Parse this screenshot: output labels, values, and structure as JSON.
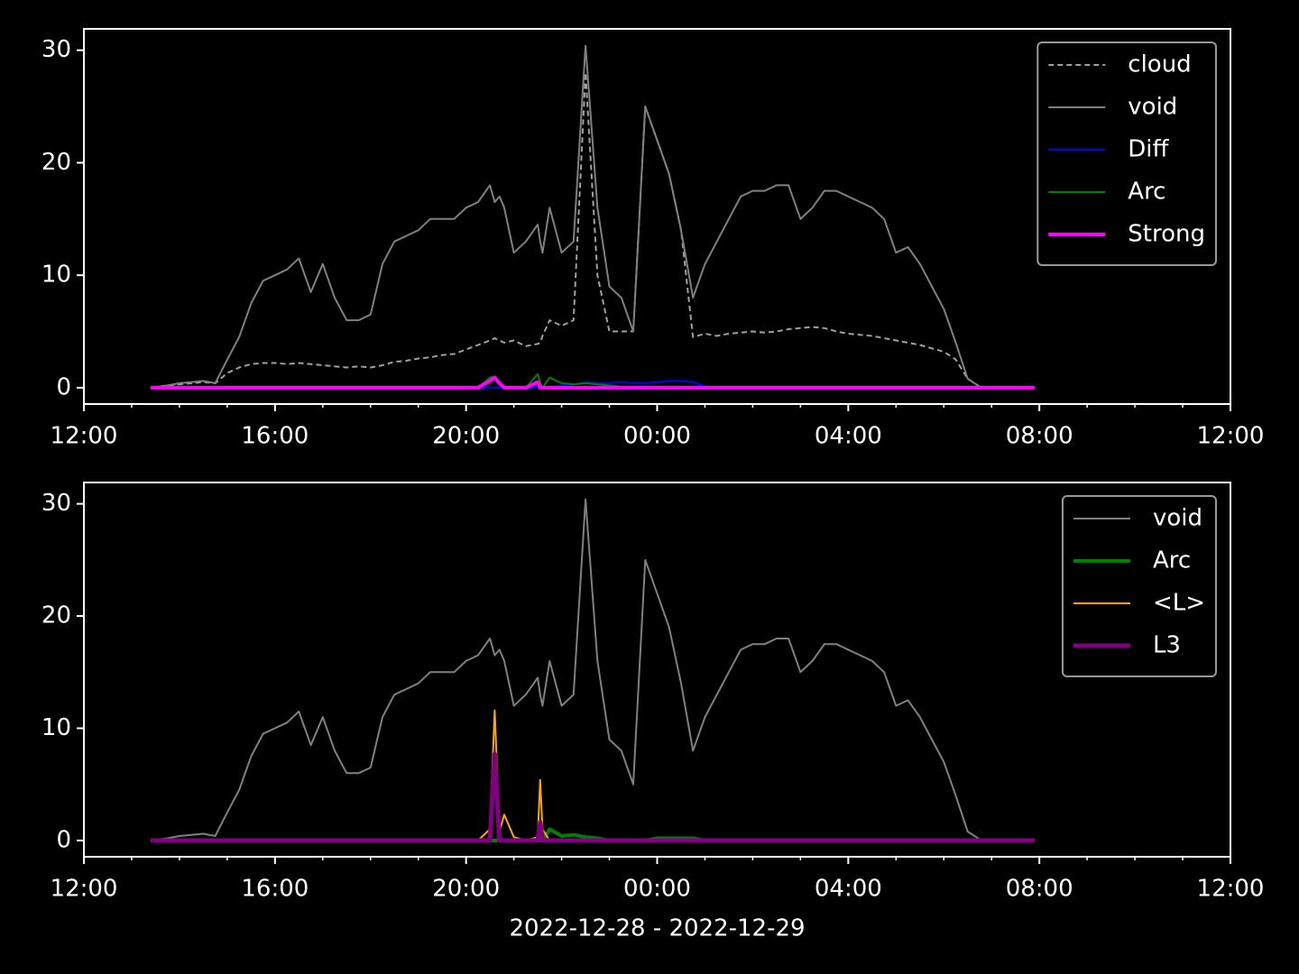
{
  "chart_data": [
    {
      "type": "line",
      "legend": "upper right",
      "xlim": [
        12,
        36
      ],
      "xticks": [
        {
          "value": 12,
          "label": "12:00"
        },
        {
          "value": 16,
          "label": "16:00"
        },
        {
          "value": 20,
          "label": "20:00"
        },
        {
          "value": 24,
          "label": "00:00"
        },
        {
          "value": 28,
          "label": "04:00"
        },
        {
          "value": 32,
          "label": "08:00"
        },
        {
          "value": 36,
          "label": "12:00"
        }
      ],
      "ylim": [
        -1.45,
        31.9
      ],
      "yticks": [
        0,
        10,
        20,
        30
      ],
      "x": [
        13.4,
        13.75,
        14,
        14.25,
        14.5,
        14.75,
        15,
        15.25,
        15.5,
        15.75,
        16,
        16.25,
        16.5,
        16.75,
        17,
        17.25,
        17.5,
        17.75,
        18,
        18.25,
        18.5,
        18.75,
        19,
        19.25,
        19.5,
        19.75,
        20,
        20.25,
        20.5,
        20.6,
        20.7,
        20.8,
        21,
        21.25,
        21.5,
        21.55,
        21.6,
        21.75,
        22,
        22.25,
        22.5,
        22.75,
        23,
        23.25,
        23.5,
        23.75,
        24,
        24.25,
        24.5,
        24.75,
        25,
        25.25,
        25.5,
        25.75,
        26,
        26.25,
        26.5,
        26.75,
        27,
        27.25,
        27.5,
        27.75,
        28,
        28.25,
        28.5,
        28.75,
        29,
        29.25,
        29.5,
        29.75,
        30,
        30.25,
        30.5,
        30.75,
        31,
        31.25,
        31.5,
        31.9
      ],
      "series": [
        {
          "name": "cloud",
          "color": "#a0a0a0",
          "linestyle": "dashed",
          "linewidth": 2,
          "values": [
            0,
            0.2,
            0.3,
            0.4,
            0.5,
            0.4,
            1.3,
            1.8,
            2.1,
            2.2,
            2.2,
            2.1,
            2.2,
            2.1,
            2,
            1.9,
            1.8,
            1.9,
            1.8,
            2,
            2.3,
            2.4,
            2.6,
            2.7,
            2.9,
            3,
            3.4,
            3.8,
            4.2,
            4.4,
            4.2,
            4,
            4.2,
            3.7,
            3.9,
            4,
            4.6,
            6,
            5.5,
            6,
            28,
            10,
            5,
            5,
            5,
            25,
            22,
            19,
            14,
            4.5,
            4.8,
            4.6,
            4.8,
            4.9,
            5,
            4.9,
            5,
            5.2,
            5.3,
            5.4,
            5.3,
            5,
            4.8,
            4.7,
            4.6,
            4.4,
            4.2,
            4,
            3.8,
            3.5,
            3.2,
            2.5,
            0.8,
            0.1,
            0,
            0,
            0,
            0
          ]
        },
        {
          "name": "void",
          "color": "#808080",
          "linestyle": "solid",
          "linewidth": 2,
          "values": [
            0,
            0.2,
            0.4,
            0.5,
            0.6,
            0.4,
            2.5,
            4.5,
            7.5,
            9.5,
            10,
            10.5,
            11.5,
            8.5,
            11,
            8,
            6,
            6,
            6.5,
            11,
            13,
            13.5,
            14,
            15,
            15,
            15,
            16,
            16.5,
            18,
            16.5,
            17,
            16,
            12,
            13,
            14.5,
            13,
            12,
            16,
            12,
            13,
            30.4,
            16,
            9,
            8,
            5,
            25,
            22,
            19,
            14,
            8,
            11,
            13,
            15,
            17,
            17.5,
            17.5,
            18,
            18,
            15,
            16,
            17.5,
            17.5,
            17,
            16.5,
            16,
            15,
            12,
            12.5,
            11,
            9,
            7,
            4,
            0.8,
            0.1,
            0,
            0,
            0,
            0
          ]
        },
        {
          "name": "Diff",
          "color": "#0000ff",
          "linestyle": "solid",
          "linewidth": 2,
          "values": [
            0,
            0,
            0,
            0,
            0,
            0,
            0,
            0,
            0,
            0,
            0,
            0,
            0,
            0,
            0,
            0,
            0,
            0,
            0,
            0,
            0,
            0,
            0,
            0,
            0,
            0,
            0,
            0,
            0,
            0,
            0,
            0,
            0,
            0,
            0,
            0,
            0,
            0,
            0.2,
            0.3,
            0.5,
            0.4,
            0.4,
            0.5,
            0.4,
            0.4,
            0.5,
            0.6,
            0.6,
            0.5,
            0.1,
            0,
            0,
            0,
            0,
            0,
            0,
            0,
            0,
            0,
            0,
            0,
            0,
            0,
            0,
            0,
            0,
            0,
            0,
            0,
            0,
            0,
            0,
            0,
            0,
            0,
            0,
            0
          ]
        },
        {
          "name": "Arc",
          "color": "#008000",
          "linestyle": "solid",
          "linewidth": 2,
          "values": [
            0,
            0,
            0,
            0,
            0,
            0,
            0,
            0,
            0,
            0,
            0,
            0,
            0,
            0,
            0,
            0,
            0,
            0,
            0,
            0,
            0,
            0,
            0,
            0,
            0,
            0,
            0,
            0,
            0.9,
            1,
            0.3,
            0,
            0,
            0,
            1.2,
            0.5,
            0,
            0.9,
            0.4,
            0.3,
            0.4,
            0.3,
            0.2,
            0.1,
            0.1,
            0.1,
            0.1,
            0.1,
            0.1,
            0,
            0,
            0,
            0,
            0,
            0,
            0,
            0,
            0,
            0,
            0,
            0,
            0,
            0,
            0,
            0,
            0,
            0,
            0,
            0,
            0,
            0,
            0,
            0,
            0,
            0,
            0,
            0,
            0
          ]
        },
        {
          "name": "Strong",
          "color": "#ff00ff",
          "linestyle": "solid",
          "linewidth": 4,
          "values": [
            0,
            0,
            0,
            0,
            0,
            0,
            0,
            0,
            0,
            0,
            0,
            0,
            0,
            0,
            0,
            0,
            0,
            0,
            0,
            0,
            0,
            0,
            0,
            0,
            0,
            0,
            0,
            0,
            0.6,
            0.9,
            0.4,
            0,
            0,
            0,
            0.5,
            0,
            0,
            0,
            0,
            0,
            0,
            0,
            0,
            0,
            0,
            0,
            0,
            0,
            0,
            0,
            0,
            0,
            0,
            0,
            0,
            0,
            0,
            0,
            0,
            0,
            0,
            0,
            0,
            0,
            0,
            0,
            0,
            0,
            0,
            0,
            0,
            0,
            0,
            0,
            0,
            0,
            0,
            0
          ]
        }
      ]
    },
    {
      "type": "line",
      "legend": "upper right",
      "xlabel": "2022-12-28 - 2022-12-29",
      "xlim": [
        12,
        36
      ],
      "xticks": [
        {
          "value": 12,
          "label": "12:00"
        },
        {
          "value": 16,
          "label": "16:00"
        },
        {
          "value": 20,
          "label": "20:00"
        },
        {
          "value": 24,
          "label": "00:00"
        },
        {
          "value": 28,
          "label": "04:00"
        },
        {
          "value": 32,
          "label": "08:00"
        },
        {
          "value": 36,
          "label": "12:00"
        }
      ],
      "ylim": [
        -1.45,
        31.9
      ],
      "yticks": [
        0,
        10,
        20,
        30
      ],
      "x": [
        13.4,
        13.75,
        14,
        14.25,
        14.5,
        14.75,
        15,
        15.25,
        15.5,
        15.75,
        16,
        16.25,
        16.5,
        16.75,
        17,
        17.25,
        17.5,
        17.75,
        18,
        18.25,
        18.5,
        18.75,
        19,
        19.25,
        19.5,
        19.75,
        20,
        20.25,
        20.5,
        20.6,
        20.7,
        20.8,
        21,
        21.25,
        21.5,
        21.55,
        21.6,
        21.75,
        22,
        22.25,
        22.5,
        22.75,
        23,
        23.25,
        23.5,
        23.75,
        24,
        24.25,
        24.5,
        24.75,
        25,
        25.25,
        25.5,
        25.75,
        26,
        26.25,
        26.5,
        26.75,
        27,
        27.25,
        27.5,
        27.75,
        28,
        28.25,
        28.5,
        28.75,
        29,
        29.25,
        29.5,
        29.75,
        30,
        30.25,
        30.5,
        30.75,
        31,
        31.25,
        31.5,
        31.9
      ],
      "series": [
        {
          "name": "void",
          "color": "#808080",
          "linestyle": "solid",
          "linewidth": 2,
          "values": [
            0,
            0.2,
            0.4,
            0.5,
            0.6,
            0.4,
            2.5,
            4.5,
            7.5,
            9.5,
            10,
            10.5,
            11.5,
            8.5,
            11,
            8,
            6,
            6,
            6.5,
            11,
            13,
            13.5,
            14,
            15,
            15,
            15,
            16,
            16.5,
            18,
            16.5,
            17,
            16,
            12,
            13,
            14.5,
            13,
            12,
            16,
            12,
            13,
            30.4,
            16,
            9,
            8,
            5,
            25,
            22,
            19,
            14,
            8,
            11,
            13,
            15,
            17,
            17.5,
            17.5,
            18,
            18,
            15,
            16,
            17.5,
            17.5,
            17,
            16.5,
            16,
            15,
            12,
            12.5,
            11,
            9,
            7,
            4,
            0.8,
            0.1,
            0,
            0,
            0,
            0
          ]
        },
        {
          "name": "Arc",
          "color": "#008000",
          "linestyle": "solid",
          "linewidth": 4,
          "values": [
            0,
            0,
            0,
            0,
            0,
            0,
            0,
            0,
            0,
            0,
            0,
            0,
            0,
            0,
            0,
            0,
            0,
            0,
            0,
            0,
            0,
            0,
            0,
            0,
            0,
            0,
            0,
            0,
            0,
            0,
            0,
            0,
            0,
            0,
            0,
            0,
            0,
            1,
            0.4,
            0.5,
            0.3,
            0.2,
            0,
            0,
            0,
            0,
            0.2,
            0.2,
            0.2,
            0.2,
            0,
            0,
            0,
            0,
            0,
            0,
            0,
            0,
            0,
            0,
            0,
            0,
            0,
            0,
            0,
            0,
            0,
            0,
            0,
            0,
            0,
            0,
            0,
            0,
            0,
            0,
            0,
            0
          ]
        },
        {
          "name": "<L>",
          "color": "#ffa500",
          "linestyle": "solid",
          "linewidth": 2,
          "values": [
            0,
            0,
            0,
            0,
            0,
            0,
            0,
            0,
            0,
            0,
            0,
            0,
            0,
            0,
            0,
            0,
            0,
            0,
            0,
            0,
            0,
            0,
            0,
            0,
            0,
            0,
            0,
            0,
            1,
            11.6,
            0.8,
            2.3,
            0.3,
            0,
            0.3,
            5.4,
            1,
            0,
            0,
            0,
            0,
            0,
            0,
            0,
            0,
            0,
            0,
            0,
            0,
            0,
            0,
            0,
            0,
            0,
            0,
            0,
            0,
            0,
            0,
            0,
            0,
            0,
            0,
            0,
            0,
            0,
            0,
            0,
            0,
            0,
            0,
            0,
            0,
            0,
            0,
            0,
            0,
            0
          ]
        },
        {
          "name": "L3",
          "color": "#800080",
          "linestyle": "solid",
          "linewidth": 5,
          "values": [
            0,
            0,
            0,
            0,
            0,
            0,
            0,
            0,
            0,
            0,
            0,
            0,
            0,
            0,
            0,
            0,
            0,
            0,
            0,
            0,
            0,
            0,
            0,
            0,
            0,
            0,
            0,
            0,
            0,
            7.7,
            0,
            0,
            0,
            0,
            0,
            1.6,
            0,
            0,
            0,
            0,
            0,
            0,
            0,
            0,
            0,
            0,
            0,
            0,
            0,
            0,
            0,
            0,
            0,
            0,
            0,
            0,
            0,
            0,
            0,
            0,
            0,
            0,
            0,
            0,
            0,
            0,
            0,
            0,
            0,
            0,
            0,
            0,
            0,
            0,
            0,
            0,
            0,
            0
          ]
        }
      ]
    }
  ]
}
